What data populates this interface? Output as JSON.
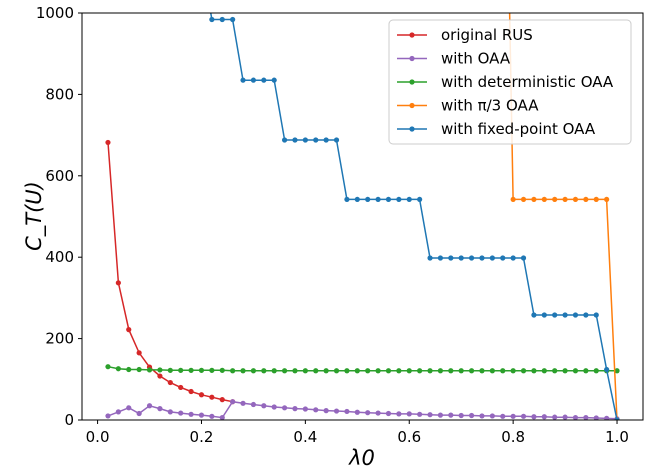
{
  "chart_data": {
    "type": "line",
    "xlabel": "λ0",
    "ylabel": "C_T(U)",
    "xlim": [
      -0.03,
      1.05
    ],
    "ylim": [
      0,
      1000
    ],
    "xticks": [
      0.0,
      0.2,
      0.4,
      0.6,
      0.8,
      1.0
    ],
    "xtick_labels": [
      "0.0",
      "0.2",
      "0.4",
      "0.6",
      "0.8",
      "1.0"
    ],
    "yticks": [
      0,
      200,
      400,
      600,
      800,
      1000
    ],
    "ytick_labels": [
      "0",
      "200",
      "400",
      "600",
      "800",
      "1000"
    ],
    "grid": false,
    "legend_position": "top-right",
    "series": [
      {
        "name": "original RUS",
        "color": "#d62728",
        "x": [
          0.02,
          0.04,
          0.06,
          0.08,
          0.1,
          0.12,
          0.14,
          0.16,
          0.18,
          0.2,
          0.22,
          0.24,
          0.26
        ],
        "y": [
          682,
          337,
          222,
          165,
          130,
          108,
          92,
          80,
          70,
          62,
          56,
          50,
          45
        ]
      },
      {
        "name": "with OAA",
        "color": "#9467bd",
        "x": [
          0.02,
          0.04,
          0.06,
          0.08,
          0.1,
          0.12,
          0.14,
          0.16,
          0.18,
          0.2,
          0.22,
          0.24,
          0.26,
          0.28,
          0.3,
          0.32,
          0.34,
          0.36,
          0.38,
          0.4,
          0.42,
          0.44,
          0.46,
          0.48,
          0.5,
          0.52,
          0.54,
          0.56,
          0.58,
          0.6,
          0.62,
          0.64,
          0.66,
          0.68,
          0.7,
          0.72,
          0.74,
          0.76,
          0.78,
          0.8,
          0.82,
          0.84,
          0.86,
          0.88,
          0.9,
          0.92,
          0.94,
          0.96,
          0.98,
          1.0
        ],
        "y": [
          10,
          20,
          30,
          16,
          35,
          28,
          20,
          17,
          14,
          12,
          9,
          6,
          45,
          41,
          38,
          35,
          32,
          30,
          28,
          27,
          25,
          23,
          22,
          21,
          19,
          18,
          17,
          16,
          15,
          15,
          14,
          13,
          12,
          12,
          11,
          11,
          10,
          10,
          9,
          9,
          9,
          8,
          8,
          7,
          7,
          6,
          6,
          5,
          4,
          3
        ]
      },
      {
        "name": "with deterministic OAA",
        "color": "#2ca02c",
        "x": [
          0.02,
          0.04,
          0.06,
          0.08,
          0.1,
          0.12,
          0.14,
          0.16,
          0.18,
          0.2,
          0.22,
          0.24,
          0.26,
          0.28,
          0.3,
          0.32,
          0.34,
          0.36,
          0.38,
          0.4,
          0.42,
          0.44,
          0.46,
          0.48,
          0.5,
          0.52,
          0.54,
          0.56,
          0.58,
          0.6,
          0.62,
          0.64,
          0.66,
          0.68,
          0.7,
          0.72,
          0.74,
          0.76,
          0.78,
          0.8,
          0.82,
          0.84,
          0.86,
          0.88,
          0.9,
          0.92,
          0.94,
          0.96,
          0.98,
          1.0
        ],
        "y": [
          131,
          126,
          124,
          124,
          123,
          123,
          122,
          122,
          122,
          122,
          122,
          122,
          121,
          121,
          121,
          121,
          121,
          121,
          121,
          121,
          121,
          121,
          121,
          121,
          121,
          121,
          121,
          121,
          121,
          121,
          121,
          121,
          121,
          121,
          121,
          121,
          121,
          121,
          121,
          121,
          121,
          121,
          121,
          121,
          121,
          121,
          121,
          121,
          121,
          121
        ]
      },
      {
        "name": "with π/3 OAA",
        "color": "#ff7f0e",
        "x": [
          0.78,
          0.8,
          0.82,
          0.84,
          0.86,
          0.88,
          0.9,
          0.92,
          0.94,
          0.96,
          0.98,
          1.0
        ],
        "y": [
          1900,
          542,
          542,
          542,
          542,
          542,
          542,
          542,
          542,
          542,
          542,
          0
        ]
      },
      {
        "name": "with fixed-point OAA",
        "color": "#1f77b4",
        "x": [
          0.2,
          0.22,
          0.24,
          0.26,
          0.28,
          0.3,
          0.32,
          0.34,
          0.36,
          0.38,
          0.4,
          0.42,
          0.44,
          0.46,
          0.48,
          0.5,
          0.52,
          0.54,
          0.56,
          0.58,
          0.6,
          0.62,
          0.64,
          0.66,
          0.68,
          0.7,
          0.72,
          0.74,
          0.76,
          0.78,
          0.8,
          0.82,
          0.84,
          0.86,
          0.88,
          0.9,
          0.92,
          0.94,
          0.96,
          0.98,
          1.0
        ],
        "y": [
          1130,
          984,
          984,
          984,
          835,
          835,
          835,
          835,
          688,
          688,
          688,
          688,
          688,
          688,
          542,
          542,
          542,
          542,
          542,
          542,
          542,
          542,
          398,
          398,
          398,
          398,
          398,
          398,
          398,
          398,
          398,
          398,
          258,
          258,
          258,
          258,
          258,
          258,
          258,
          124,
          0
        ]
      }
    ]
  }
}
